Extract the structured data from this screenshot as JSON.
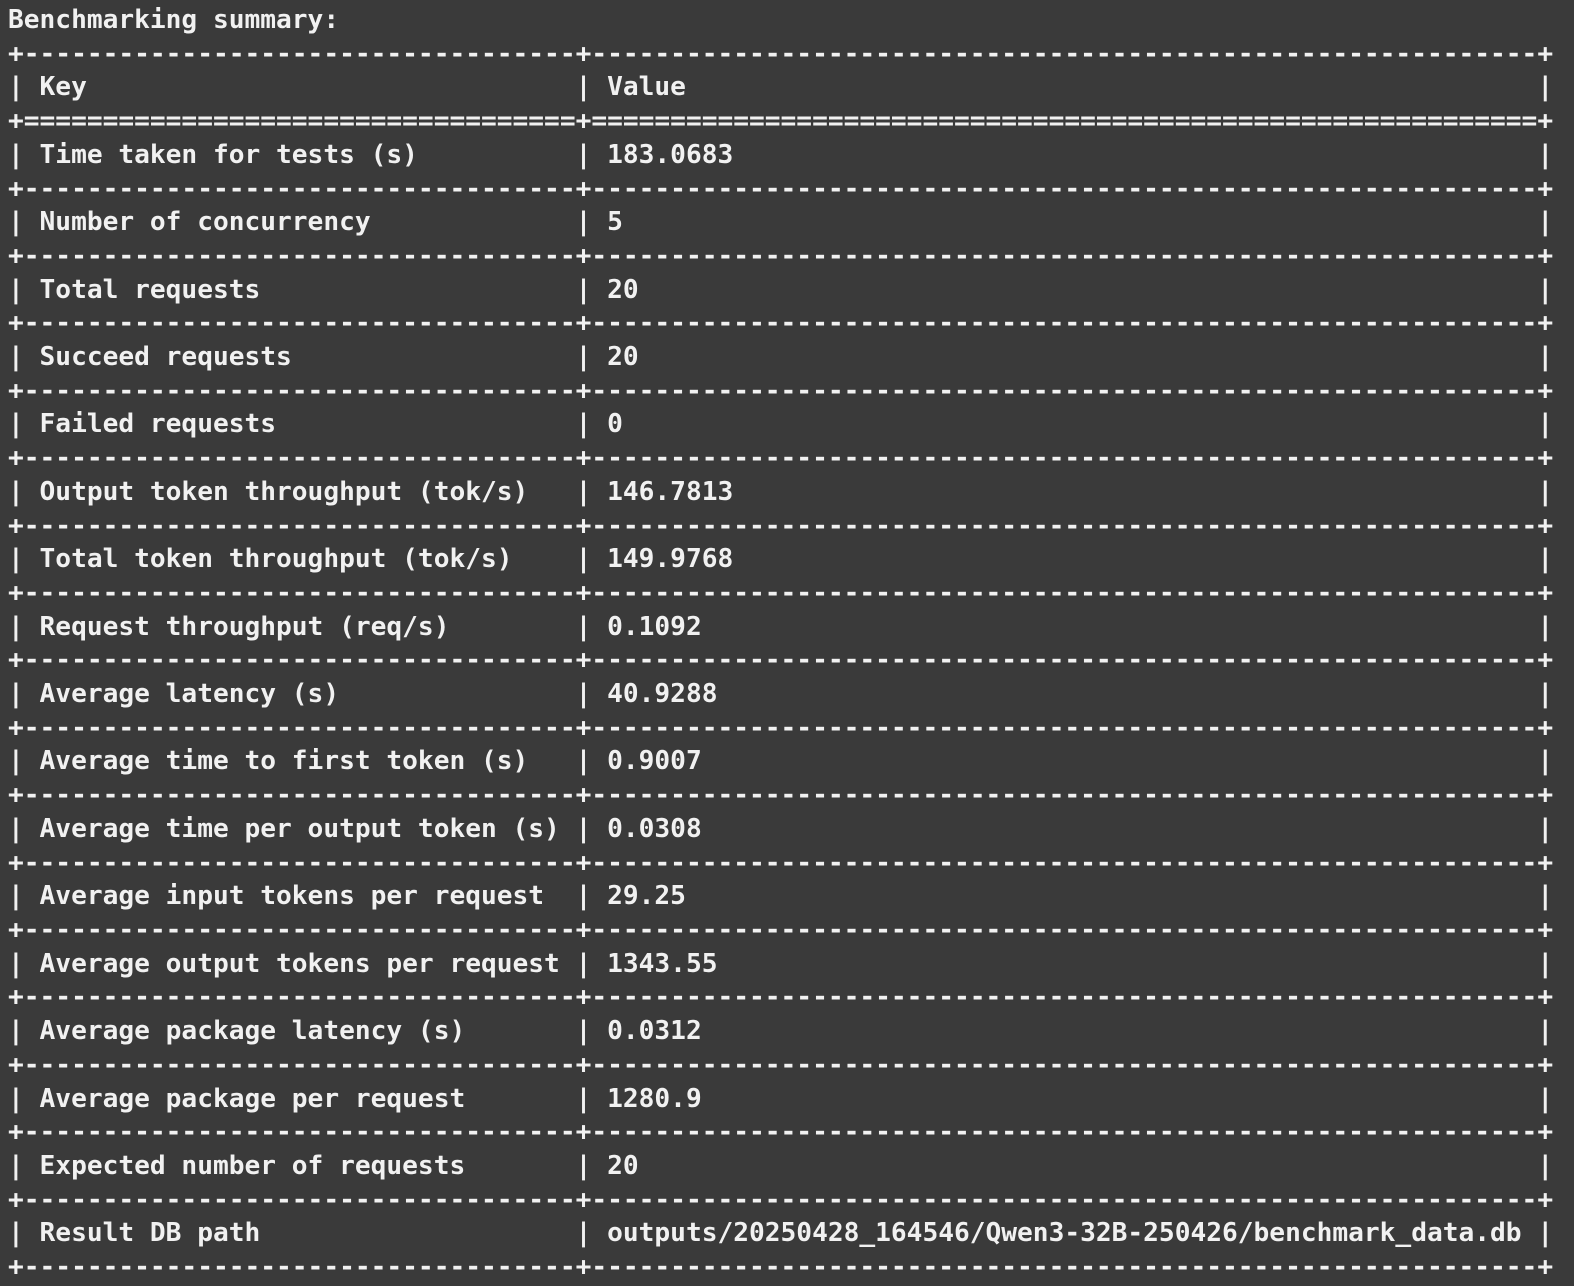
{
  "terminal": {
    "title": "Benchmarking summary:",
    "colors": {
      "background": "#3a3a3a",
      "foreground": "#f1f1f1"
    },
    "table": {
      "headers": [
        "Key",
        "Value"
      ],
      "rows": [
        {
          "key": "Time taken for tests (s)",
          "value": "183.0683"
        },
        {
          "key": "Number of concurrency",
          "value": "5"
        },
        {
          "key": "Total requests",
          "value": "20"
        },
        {
          "key": "Succeed requests",
          "value": "20"
        },
        {
          "key": "Failed requests",
          "value": "0"
        },
        {
          "key": "Output token throughput (tok/s)",
          "value": "146.7813"
        },
        {
          "key": "Total token throughput (tok/s)",
          "value": "149.9768"
        },
        {
          "key": "Request throughput (req/s)",
          "value": "0.1092"
        },
        {
          "key": "Average latency (s)",
          "value": "40.9288"
        },
        {
          "key": "Average time to first token (s)",
          "value": "0.9007"
        },
        {
          "key": "Average time per output token (s)",
          "value": "0.0308"
        },
        {
          "key": "Average input tokens per request",
          "value": "29.25"
        },
        {
          "key": "Average output tokens per request",
          "value": "1343.55"
        },
        {
          "key": "Average package latency (s)",
          "value": "0.0312"
        },
        {
          "key": "Average package per request",
          "value": "1280.9"
        },
        {
          "key": "Expected number of requests",
          "value": "20"
        },
        {
          "key": "Result DB path",
          "value": "outputs/20250428_164546/Qwen3-32B-250426/benchmark_data.db"
        }
      ]
    }
  }
}
